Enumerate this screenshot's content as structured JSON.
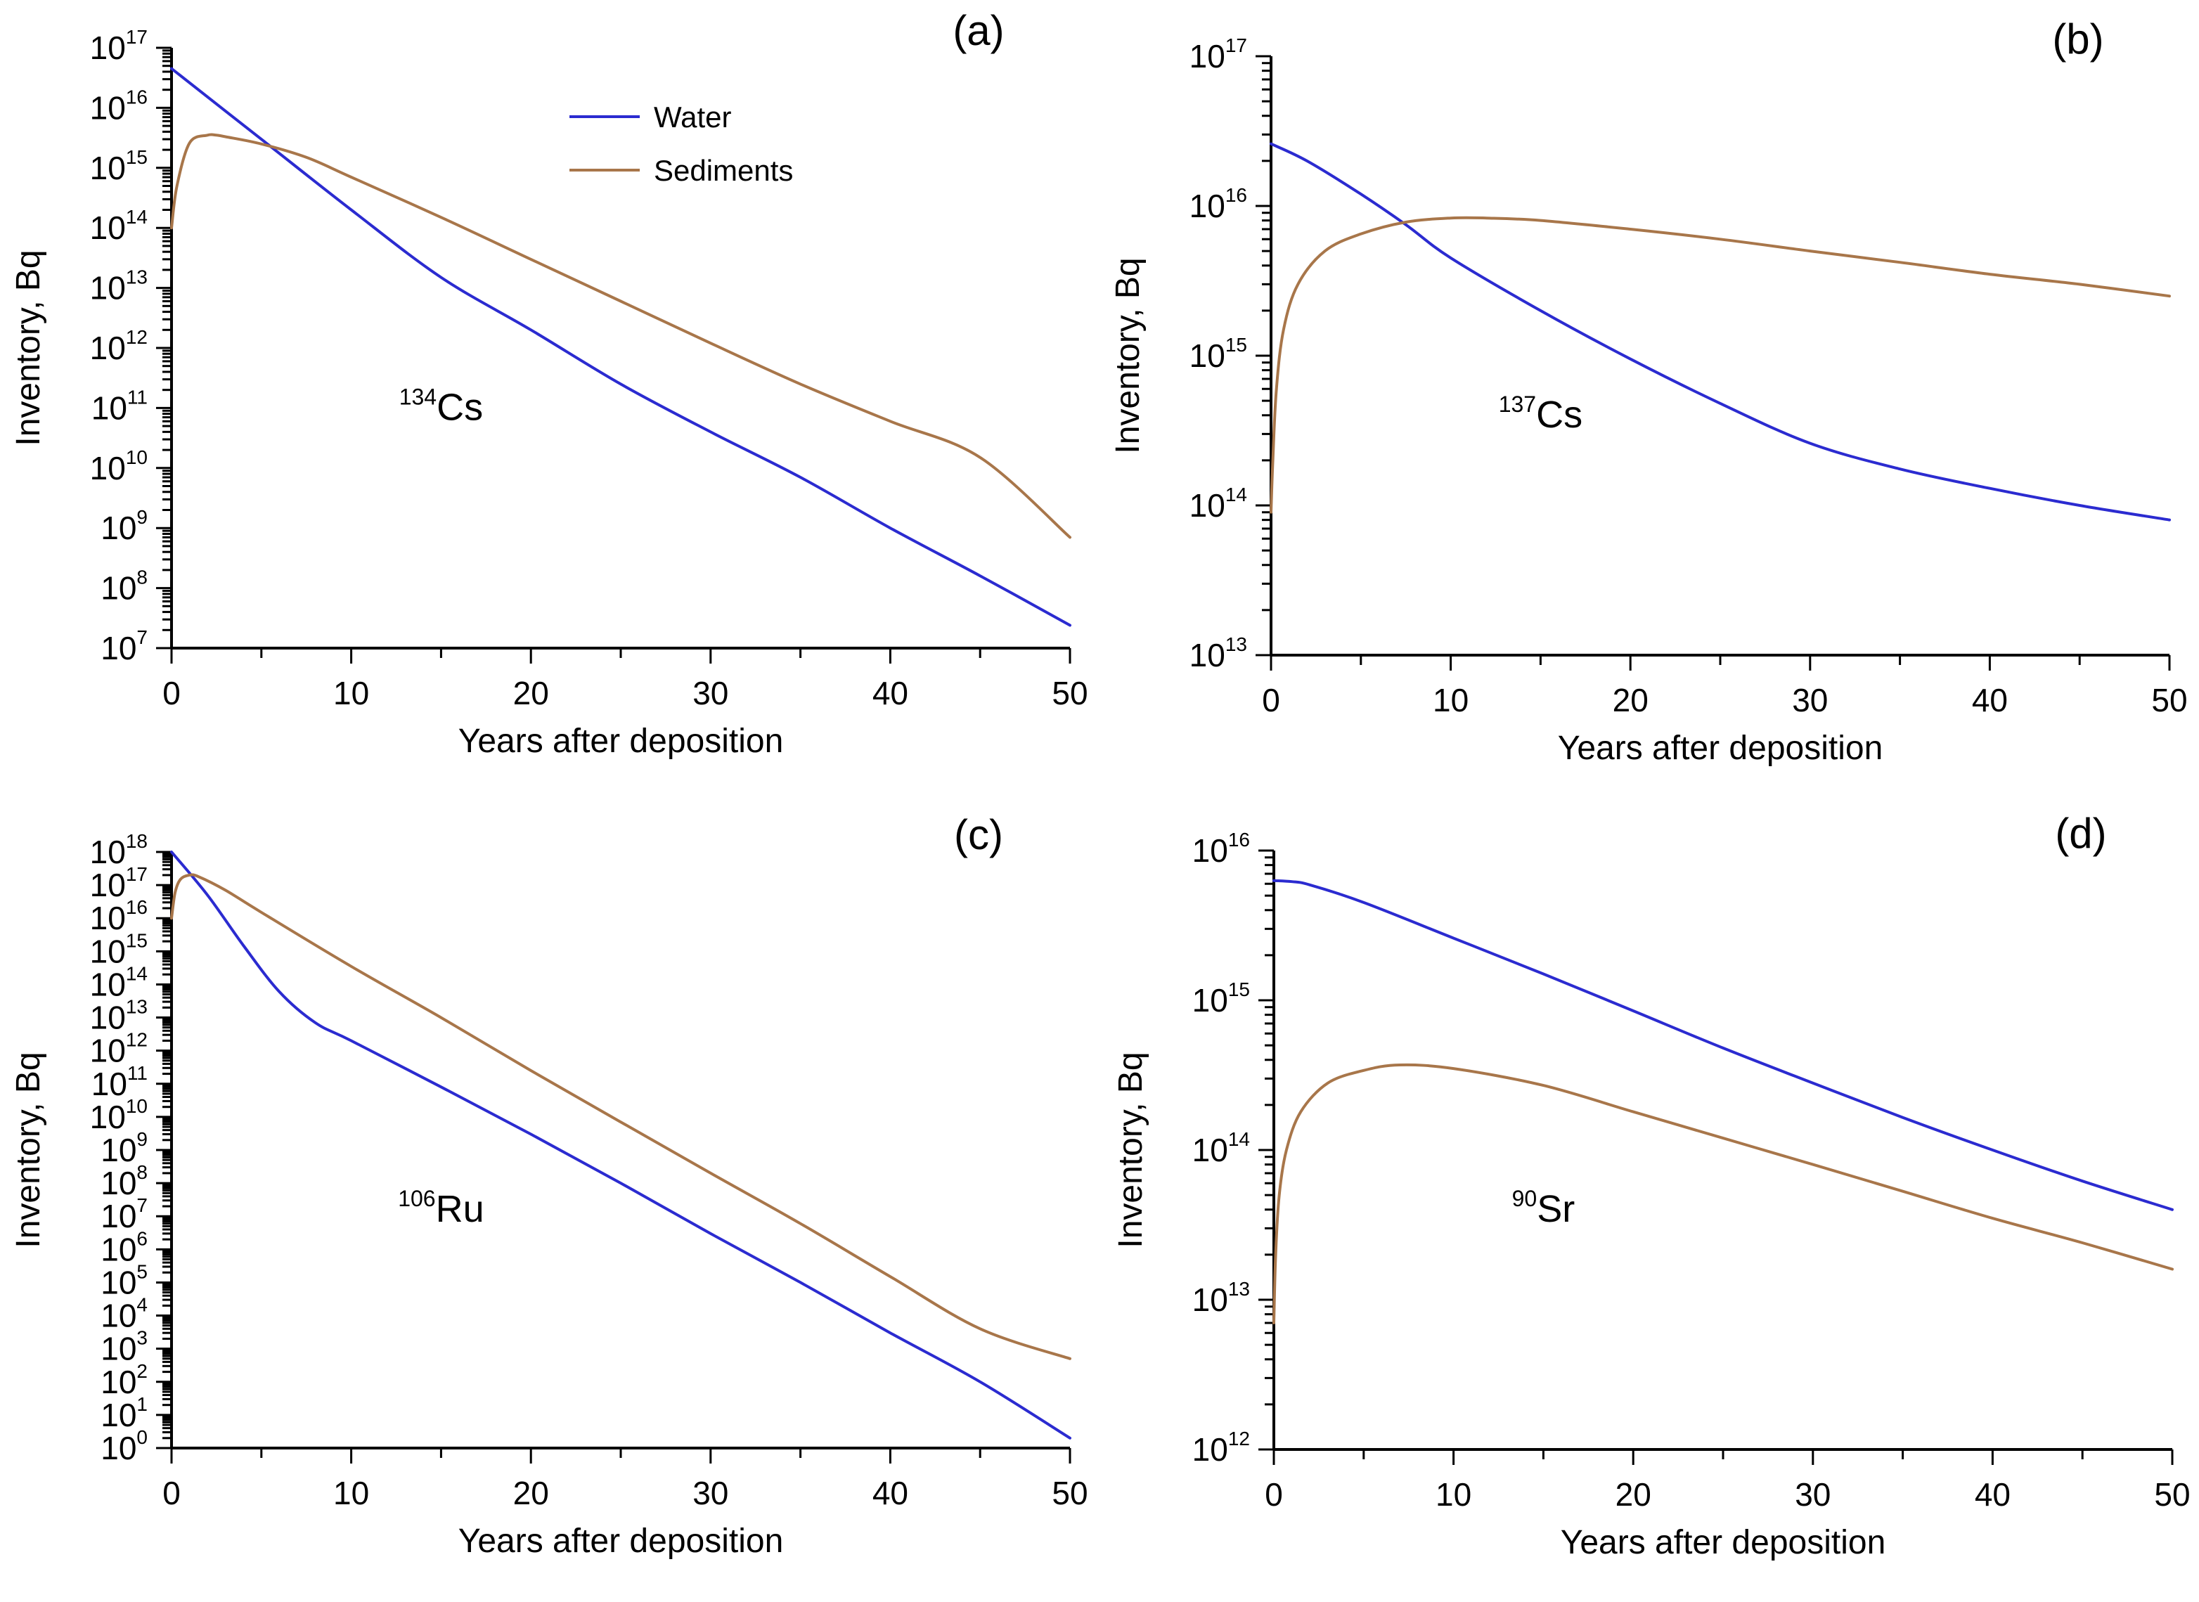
{
  "colors": {
    "water": "#2b2bd0",
    "sediments": "#a8764a"
  },
  "legend": {
    "water_label": "Water",
    "sediments_label": "Sediments"
  },
  "chart_data": [
    {
      "id": "a",
      "type": "line",
      "panel_label": "(a)",
      "nuclide_mass": "134",
      "nuclide_symbol": "Cs",
      "xlabel": "Years after deposition",
      "ylabel": "Inventory, Bq",
      "xlim": [
        0,
        50
      ],
      "xticks": [
        0,
        10,
        20,
        30,
        40,
        50
      ],
      "ylog": true,
      "ylim_exp": [
        7,
        17
      ],
      "show_legend": true,
      "series": [
        {
          "name": "Water",
          "color_key": "water",
          "x": [
            0,
            5,
            10,
            15,
            20,
            25,
            30,
            35,
            40,
            45,
            50
          ],
          "values": [
            4.5e+16,
            3000000000000000.0,
            200000000000000.0,
            15000000000000.0,
            2000000000000.0,
            250000000000.0,
            40000000000.0,
            7000000000.0,
            1000000000.0,
            160000000.0,
            24000000.0
          ]
        },
        {
          "name": "Sediments",
          "color_key": "sediments",
          "x": [
            0,
            0.3,
            1,
            2,
            2.5,
            3,
            5,
            7.5,
            10,
            15,
            20,
            25,
            30,
            35,
            40,
            45,
            50
          ],
          "values": [
            100000000000000.0,
            500000000000000.0,
            2600000000000000.0,
            3500000000000000.0,
            3500000000000000.0,
            3300000000000000.0,
            2500000000000000.0,
            1500000000000000.0,
            700000000000000.0,
            150000000000000.0,
            30000000000000.0,
            6000000000000.0,
            1200000000000.0,
            250000000000.0,
            60000000000.0,
            15000000000.0,
            700000000.0
          ]
        }
      ]
    },
    {
      "id": "b",
      "type": "line",
      "panel_label": "(b)",
      "nuclide_mass": "137",
      "nuclide_symbol": "Cs",
      "xlabel": "Years after deposition",
      "ylabel": "Inventory, Bq",
      "xlim": [
        0,
        50
      ],
      "xticks": [
        0,
        10,
        20,
        30,
        40,
        50
      ],
      "ylog": true,
      "ylim_exp": [
        13,
        17
      ],
      "show_legend": false,
      "series": [
        {
          "name": "Water",
          "color_key": "water",
          "x": [
            0,
            2,
            5,
            7.5,
            10,
            15,
            20,
            25,
            30,
            35,
            40,
            45,
            50
          ],
          "values": [
            2.6e+16,
            2e+16,
            1.2e+16,
            7500000000000000.0,
            4500000000000000.0,
            2000000000000000.0,
            950000000000000.0,
            480000000000000.0,
            260000000000000.0,
            175000000000000.0,
            130000000000000.0,
            100000000000000.0,
            80000000000000.0
          ]
        },
        {
          "name": "Sediments",
          "color_key": "sediments",
          "x": [
            0,
            0.1,
            0.3,
            0.7,
            1.5,
            3,
            5,
            7.5,
            10,
            12,
            15,
            20,
            25,
            30,
            35,
            40,
            45,
            50
          ],
          "values": [
            90000000000000.0,
            200000000000000.0,
            600000000000000.0,
            1500000000000000.0,
            3000000000000000.0,
            5000000000000000.0,
            6500000000000000.0,
            7800000000000000.0,
            8300000000000000.0,
            8300000000000000.0,
            8000000000000000.0,
            7000000000000000.0,
            6000000000000000.0,
            5000000000000000.0,
            4200000000000000.0,
            3500000000000000.0,
            3000000000000000.0,
            2500000000000000.0
          ]
        }
      ]
    },
    {
      "id": "c",
      "type": "line",
      "panel_label": "(c)",
      "nuclide_mass": "106",
      "nuclide_symbol": "Ru",
      "xlabel": "Years after deposition",
      "ylabel": "Inventory, Bq",
      "xlim": [
        0,
        50
      ],
      "xticks": [
        0,
        10,
        20,
        30,
        40,
        50
      ],
      "ylog": true,
      "ylim_exp": [
        0,
        18
      ],
      "show_legend": false,
      "series": [
        {
          "name": "Water",
          "color_key": "water",
          "x": [
            0,
            2,
            4,
            6,
            8,
            10,
            15,
            20,
            25,
            30,
            35,
            40,
            45,
            50
          ],
          "values": [
            1e+18,
            5e+16,
            1500000000000000.0,
            60000000000000.0,
            7000000000000.0,
            2000000000000.0,
            80000000000.0,
            3000000000.0,
            100000000.0,
            3000000.0,
            100000.0,
            3000.0,
            100.0,
            2.0
          ]
        },
        {
          "name": "Sediments",
          "color_key": "sediments",
          "x": [
            0,
            0.2,
            0.5,
            1,
            1.5,
            3,
            5,
            10,
            15,
            20,
            25,
            30,
            35,
            40,
            45,
            50
          ],
          "values": [
            1e+16,
            6e+16,
            1.5e+17,
            2e+17,
            1.8e+17,
            7e+16,
            1.5e+16,
            350000000000000.0,
            10000000000000.0,
            250000000000.0,
            7000000000.0,
            200000000.0,
            6000000.0,
            150000.0,
            4000.0,
            500.0
          ]
        }
      ]
    },
    {
      "id": "d",
      "type": "line",
      "panel_label": "(d)",
      "nuclide_mass": "90",
      "nuclide_symbol": "Sr",
      "xlabel": "Years after deposition",
      "ylabel": "Inventory, Bq",
      "xlim": [
        0,
        50
      ],
      "xticks": [
        0,
        10,
        20,
        30,
        40,
        50
      ],
      "ylog": true,
      "ylim_exp": [
        12,
        16
      ],
      "show_legend": false,
      "series": [
        {
          "name": "Water",
          "color_key": "water",
          "x": [
            0,
            1,
            2,
            5,
            10,
            15,
            20,
            25,
            30,
            35,
            40,
            45,
            50
          ],
          "values": [
            6300000000000000.0,
            6200000000000000.0,
            5900000000000000.0,
            4500000000000000.0,
            2600000000000000.0,
            1500000000000000.0,
            850000000000000.0,
            480000000000000.0,
            280000000000000.0,
            165000000000000.0,
            100000000000000.0,
            62000000000000.0,
            40000000000000.0
          ]
        },
        {
          "name": "Sediments",
          "color_key": "sediments",
          "x": [
            0,
            0.1,
            0.3,
            0.7,
            1.5,
            3,
            5,
            7,
            10,
            15,
            20,
            25,
            30,
            35,
            40,
            45,
            50
          ],
          "values": [
            7000000000000.0,
            20000000000000.0,
            50000000000000.0,
            100000000000000.0,
            180000000000000.0,
            280000000000000.0,
            340000000000000.0,
            370000000000000.0,
            350000000000000.0,
            270000000000000.0,
            180000000000000.0,
            120000000000000.0,
            80000000000000.0,
            53000000000000.0,
            35000000000000.0,
            24000000000000.0,
            16000000000000.0
          ]
        }
      ]
    }
  ]
}
